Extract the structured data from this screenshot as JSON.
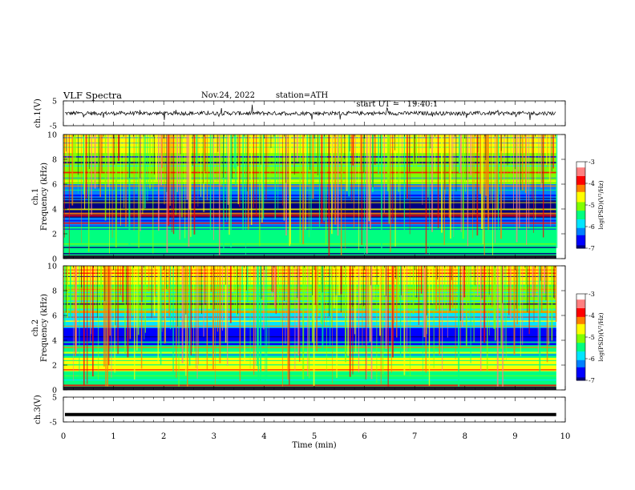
{
  "header": {
    "title": "VLF Spectra",
    "date": "Nov.24, 2022",
    "station": "station=ATH",
    "start_label": "start UT =",
    "start_time": "19:40:1"
  },
  "chart_data": [
    {
      "type": "line",
      "panel": "ch1-waveform",
      "ylabel": "ch.1(V)",
      "ylim": [
        -5,
        5
      ],
      "yticks": [
        "5",
        "-5"
      ],
      "series": [
        {
          "description": "noisy waveform centered near 0 V with spikes",
          "mean": 0,
          "amplitude_approx": 0.8
        }
      ]
    },
    {
      "type": "heatmap",
      "panel": "ch1-spectrogram",
      "ylabel_top": "ch.1",
      "ylabel": "Frequency (kHz)",
      "ylim": [
        0,
        10
      ],
      "yticks": [
        "0",
        "2",
        "4",
        "6",
        "8",
        "10"
      ],
      "colorbar": {
        "label": "log(PSD)(V²/Hz)",
        "range": [
          -7,
          -3
        ],
        "ticks": [
          "-3",
          "-4",
          "-5",
          "-6",
          "-7"
        ]
      },
      "bands_khz": [
        {
          "from": 0,
          "to": 1.5,
          "level": -5.6
        },
        {
          "from": 1.5,
          "to": 2.6,
          "level": -5.3
        },
        {
          "from": 2.6,
          "to": 3.3,
          "level": -6.3
        },
        {
          "from": 3.3,
          "to": 4.9,
          "level": -6.9
        },
        {
          "from": 4.9,
          "to": 6.0,
          "level": -6.1
        },
        {
          "from": 6.0,
          "to": 8.5,
          "level": -5.0
        },
        {
          "from": 8.5,
          "to": 10,
          "level": -4.6
        }
      ]
    },
    {
      "type": "heatmap",
      "panel": "ch2-spectrogram",
      "ylabel_top": "ch.2",
      "ylabel": "Frequency (kHz)",
      "ylim": [
        0,
        10
      ],
      "yticks": [
        "0",
        "2",
        "4",
        "6",
        "8",
        "10"
      ],
      "colorbar": {
        "label": "log(PSD)(V²/Hz)",
        "range": [
          -7,
          -3
        ],
        "ticks": [
          "-3",
          "-4",
          "-5",
          "-6",
          "-7"
        ]
      },
      "bands_khz": [
        {
          "from": 0,
          "to": 1.5,
          "level": -5.4
        },
        {
          "from": 1.5,
          "to": 2.6,
          "level": -4.8
        },
        {
          "from": 2.6,
          "to": 3.6,
          "level": -5.6
        },
        {
          "from": 3.6,
          "to": 5.0,
          "level": -6.4
        },
        {
          "from": 5.0,
          "to": 6.2,
          "level": -6.0
        },
        {
          "from": 6.2,
          "to": 8.5,
          "level": -5.1
        },
        {
          "from": 8.5,
          "to": 10,
          "level": -4.8
        }
      ]
    },
    {
      "type": "line",
      "panel": "ch3-waveform",
      "ylabel": "ch.3(V)",
      "ylim": [
        -5,
        5
      ],
      "yticks": [
        "5",
        "-5"
      ],
      "series": [
        {
          "description": "flat thick trace near -2 V",
          "mean": -2
        }
      ]
    }
  ],
  "xaxis": {
    "label": "Time (min)",
    "xlim": [
      0,
      10
    ],
    "ticks": [
      "0",
      "1",
      "2",
      "3",
      "4",
      "5",
      "6",
      "7",
      "8",
      "9",
      "10"
    ],
    "data_end_min": 9.82
  },
  "colors": {
    "colormap": [
      "#000080",
      "#0000ff",
      "#0080ff",
      "#00e5ff",
      "#00ff80",
      "#80ff00",
      "#ffff00",
      "#ff8000",
      "#ff0000",
      "#ff8080",
      "#ffffff"
    ]
  }
}
